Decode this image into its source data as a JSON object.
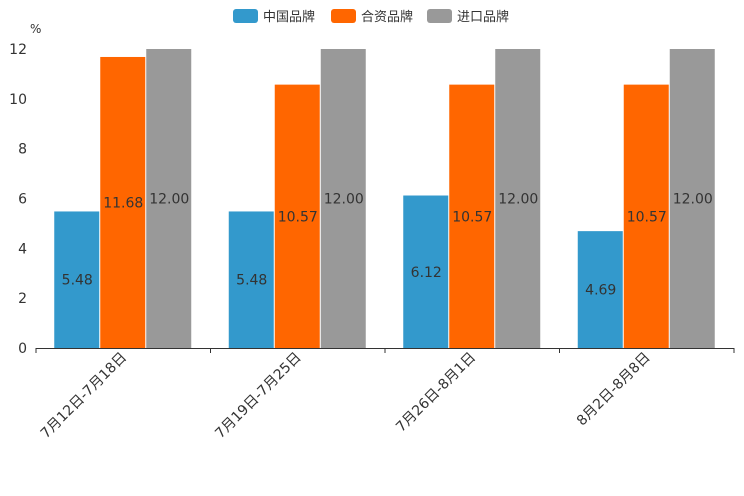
{
  "chart_data": {
    "type": "bar",
    "ylabel": "%",
    "ylim": [
      0,
      12
    ],
    "yticks": [
      0,
      2,
      4,
      6,
      8,
      10,
      12
    ],
    "categories": [
      "7月12日-7月18日",
      "7月19日-7月25日",
      "7月26日-8月1日",
      "8月2日-8月8日"
    ],
    "series": [
      {
        "name": "中国品牌",
        "color": "#3399cc",
        "values": [
          5.48,
          5.48,
          6.12,
          4.69
        ],
        "labels": [
          "5.48",
          "5.48",
          "6.12",
          "4.69"
        ]
      },
      {
        "name": "合资品牌",
        "color": "#ff6600",
        "values": [
          11.68,
          10.57,
          10.57,
          10.57
        ],
        "labels": [
          "11.68",
          "10.57",
          "10.57",
          "10.57"
        ]
      },
      {
        "name": "进口品牌",
        "color": "#999999",
        "values": [
          12.0,
          12.0,
          12.0,
          12.0
        ],
        "labels": [
          "12.00",
          "12.00",
          "12.00",
          "12.00"
        ]
      }
    ],
    "legend_position": "top-center",
    "grid": false
  }
}
